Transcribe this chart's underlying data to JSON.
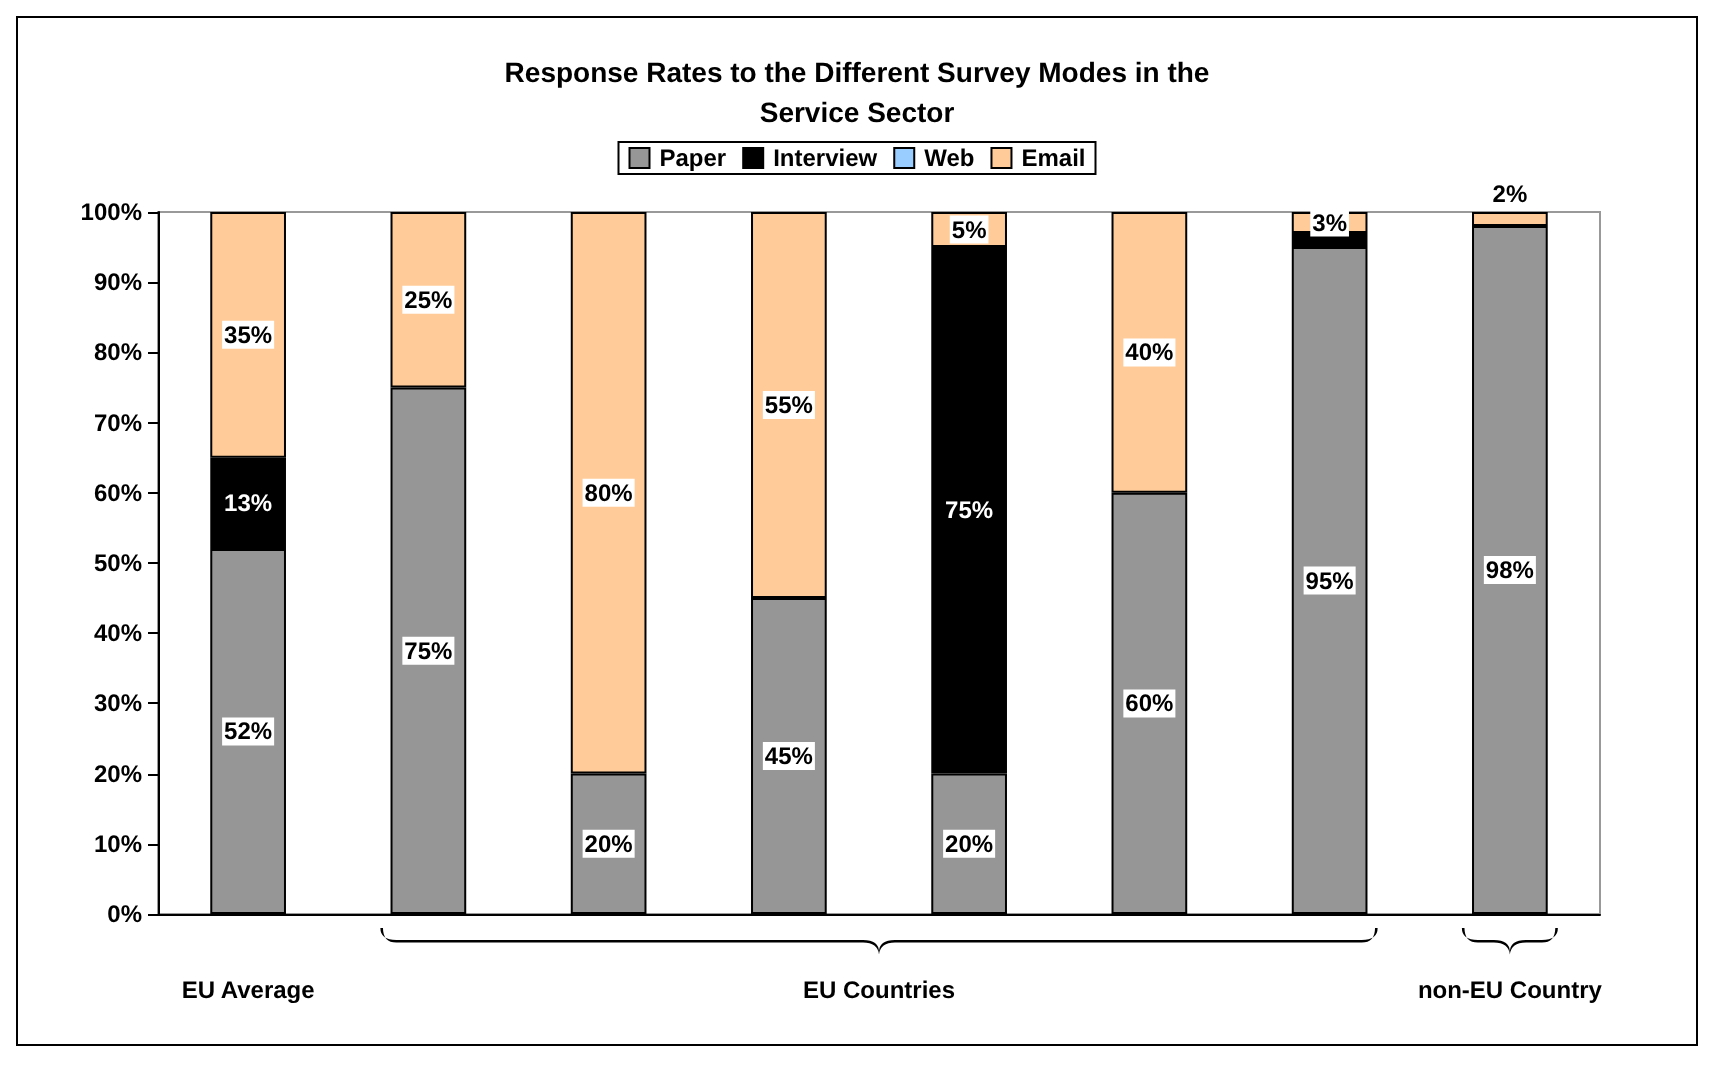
{
  "chart_data": {
    "type": "bar",
    "stacked": true,
    "title": "Response Rates to the Different Survey Modes in the\nService Sector",
    "categories": [
      "EU Average",
      null,
      null,
      null,
      null,
      null,
      null,
      "non-EU Country"
    ],
    "annotations": [
      "EU Countries"
    ],
    "series": [
      {
        "name": "Paper",
        "color": "#969696",
        "values": [
          52,
          75,
          20,
          45,
          20,
          60,
          95,
          98
        ],
        "value_labels": [
          "52%",
          "75%",
          "20%",
          "45%",
          "20%",
          "60%",
          "95%",
          "98%"
        ]
      },
      {
        "name": "Interview",
        "color": "#000000",
        "values": [
          13,
          null,
          null,
          null,
          75,
          null,
          2,
          null
        ],
        "value_labels": [
          "13%",
          null,
          null,
          null,
          "75%",
          null,
          null,
          null
        ]
      },
      {
        "name": "Web",
        "color": "#99ccff",
        "values": [
          null,
          null,
          null,
          null,
          null,
          null,
          null,
          null
        ],
        "value_labels": [
          null,
          null,
          null,
          null,
          null,
          null,
          null,
          null
        ]
      },
      {
        "name": "Email",
        "color": "#ffcc99",
        "values": [
          35,
          25,
          80,
          55,
          5,
          40,
          3,
          2
        ],
        "value_labels": [
          "35%",
          "25%",
          "80%",
          "55%",
          "5%",
          "40%",
          "3%",
          "2%"
        ]
      }
    ],
    "ylim": [
      0,
      100
    ],
    "yticks": [
      {
        "value": 0,
        "label": "0%"
      },
      {
        "value": 10,
        "label": "10%"
      },
      {
        "value": 20,
        "label": "20%"
      },
      {
        "value": 30,
        "label": "30%"
      },
      {
        "value": 40,
        "label": "40%"
      },
      {
        "value": 50,
        "label": "50%"
      },
      {
        "value": 60,
        "label": "60%"
      },
      {
        "value": 70,
        "label": "70%"
      },
      {
        "value": 80,
        "label": "80%"
      },
      {
        "value": 90,
        "label": "90%"
      },
      {
        "value": 100,
        "label": "100%"
      }
    ],
    "grid": false,
    "legend": "top"
  }
}
